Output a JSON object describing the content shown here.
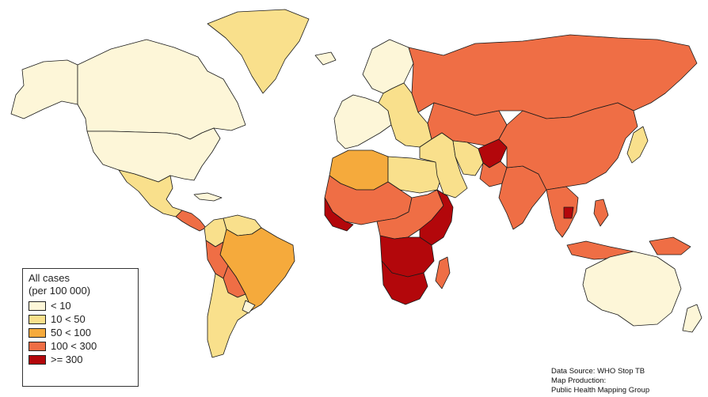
{
  "legend": {
    "title_line1": "All cases",
    "title_line2": "(per 100 000)",
    "items": [
      {
        "label": "< 10",
        "color": "#fdf6d8"
      },
      {
        "label": "10 < 50",
        "color": "#f9e08c"
      },
      {
        "label": "50 < 100",
        "color": "#f5aa3c"
      },
      {
        "label": "100 < 300",
        "color": "#ef6e45"
      },
      {
        "label": ">= 300",
        "color": "#b3070b"
      }
    ]
  },
  "credits": {
    "source": "Data Source: WHO Stop TB",
    "production_label": "Map Production:",
    "production": "Public Health Mapping Group"
  },
  "map": {
    "background": "#ffffff",
    "regions": [
      {
        "name": "alaska",
        "tier": 0
      },
      {
        "name": "canada",
        "tier": 0
      },
      {
        "name": "united-states",
        "tier": 0
      },
      {
        "name": "greenland",
        "tier": 1
      },
      {
        "name": "mexico",
        "tier": 1
      },
      {
        "name": "central-america",
        "tier": 3
      },
      {
        "name": "cuba",
        "tier": 0
      },
      {
        "name": "colombia",
        "tier": 1
      },
      {
        "name": "venezuela",
        "tier": 1
      },
      {
        "name": "brazil",
        "tier": 2
      },
      {
        "name": "peru",
        "tier": 3
      },
      {
        "name": "bolivia",
        "tier": 3
      },
      {
        "name": "chile-argentina",
        "tier": 1
      },
      {
        "name": "uruguay",
        "tier": 0
      },
      {
        "name": "iceland",
        "tier": 0
      },
      {
        "name": "scandinavia",
        "tier": 0
      },
      {
        "name": "western-europe",
        "tier": 0
      },
      {
        "name": "eastern-europe",
        "tier": 1
      },
      {
        "name": "russia",
        "tier": 3
      },
      {
        "name": "kazakhstan-central-asia",
        "tier": 3
      },
      {
        "name": "morocco-algeria",
        "tier": 2
      },
      {
        "name": "libya-egypt",
        "tier": 1
      },
      {
        "name": "west-africa",
        "tier": 3
      },
      {
        "name": "west-africa-high",
        "tier": 4
      },
      {
        "name": "central-africa",
        "tier": 3
      },
      {
        "name": "east-africa-horn",
        "tier": 4
      },
      {
        "name": "southern-central-africa",
        "tier": 4
      },
      {
        "name": "southern-africa",
        "tier": 4
      },
      {
        "name": "madagascar",
        "tier": 3
      },
      {
        "name": "middle-east",
        "tier": 1
      },
      {
        "name": "iran",
        "tier": 1
      },
      {
        "name": "afghanistan",
        "tier": 4
      },
      {
        "name": "pakistan",
        "tier": 3
      },
      {
        "name": "india",
        "tier": 3
      },
      {
        "name": "china-mongolia",
        "tier": 3
      },
      {
        "name": "japan",
        "tier": 1
      },
      {
        "name": "southeast-asia",
        "tier": 3
      },
      {
        "name": "cambodia",
        "tier": 4
      },
      {
        "name": "indonesia",
        "tier": 3
      },
      {
        "name": "philippines",
        "tier": 3
      },
      {
        "name": "papua-new-guinea",
        "tier": 3
      },
      {
        "name": "australia",
        "tier": 0
      },
      {
        "name": "new-zealand",
        "tier": 0
      }
    ]
  }
}
